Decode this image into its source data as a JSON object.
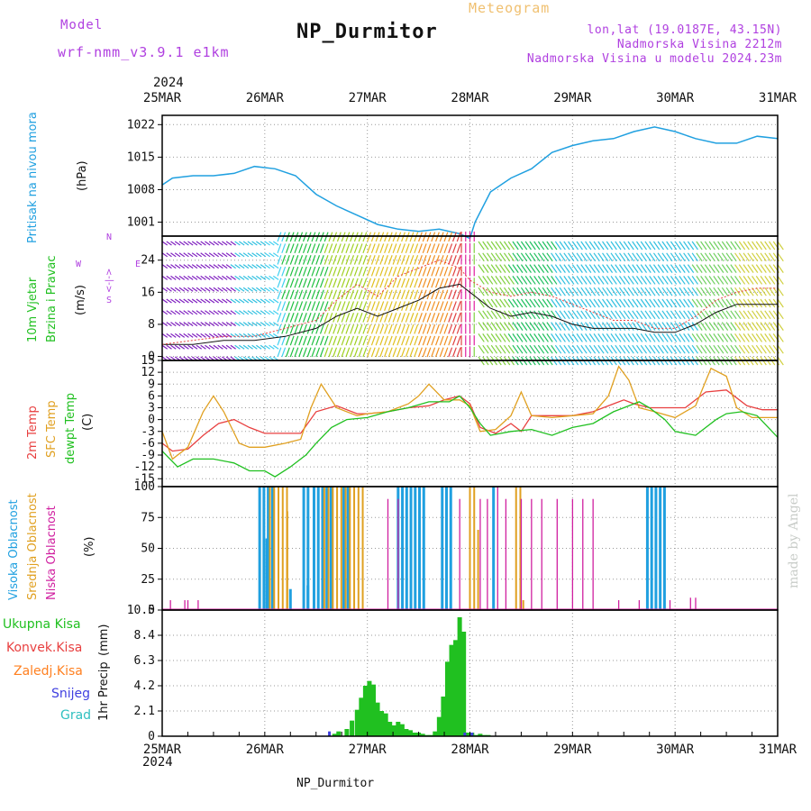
{
  "header": {
    "model_label": "Model",
    "model_name": "wrf-nmm_v3.9.1 e1km",
    "product": "Meteogram",
    "station": "NP_Durmitor",
    "coords": "lon,lat (19.0187E, 43.15N)",
    "elevation": "Nadmorska Visina 2212m",
    "model_elevation": "Nadmorska Visina u modelu 2024.23m",
    "year": "2024",
    "footer_station": "NP_Durmitor",
    "watermark": "made by Angel"
  },
  "colors": {
    "pressure": "#20a0e0",
    "wind_label": "#20c020",
    "temp2m": "#e84040",
    "sfc": "#e0a020",
    "dewpt": "#20c020",
    "high_cloud": "#20a0e0",
    "mid_cloud": "#e0a020",
    "low_cloud": "#d020a0",
    "total_precip": "#20c020",
    "conv_precip": "#e84040",
    "frozen": "#ff8020",
    "snow": "#4040e0",
    "hail": "#30c0c0",
    "purple": "#b040e0"
  },
  "time_axis": {
    "labels": [
      "25MAR",
      "26MAR",
      "27MAR",
      "28MAR",
      "29MAR",
      "30MAR",
      "31MAR"
    ]
  },
  "chart_data": [
    {
      "type": "line",
      "id": "pressure",
      "ylabel": "Pritisak na nivou mora",
      "unit": "(hPa)",
      "yticks": [
        1001,
        1008,
        1015,
        1022
      ],
      "ylim": [
        998,
        1024
      ],
      "xlim": [
        0,
        6
      ],
      "series": [
        {
          "x": [
            0,
            0.1,
            0.3,
            0.5,
            0.7,
            0.9,
            1.1,
            1.3,
            1.5,
            1.7,
            1.9,
            2.1,
            2.3,
            2.5,
            2.7,
            2.9,
            3.0,
            3.05,
            3.2,
            3.4,
            3.6,
            3.8,
            4.0,
            4.2,
            4.4,
            4.6,
            4.8,
            5.0,
            5.2,
            5.4,
            5.6,
            5.8,
            6.0
          ],
          "y": [
            1009,
            1010.5,
            1011,
            1011,
            1011.5,
            1013,
            1012.5,
            1011,
            1007,
            1004.5,
            1002.5,
            1000.5,
            999.5,
            999,
            999.5,
            998.5,
            997.5,
            1001,
            1007.5,
            1010.5,
            1012.5,
            1016,
            1017.5,
            1018.5,
            1019,
            1020.5,
            1021.5,
            1020.5,
            1019,
            1018,
            1018,
            1019.5,
            1019
          ]
        }
      ]
    },
    {
      "type": "line",
      "id": "wind",
      "ylabel": "10m Vjetar",
      "ylabel2": "Brzina i Pravac",
      "unit": "(m/s)",
      "yticks": [
        0,
        8,
        16,
        24
      ],
      "ylim": [
        -1,
        30
      ],
      "xlim": [
        0,
        6
      ],
      "compass": [
        "W",
        "<-|->",
        "E",
        "N",
        "S"
      ],
      "series": [
        {
          "name": "speed",
          "x": [
            0,
            0.3,
            0.6,
            0.9,
            1.2,
            1.5,
            1.7,
            1.9,
            2.1,
            2.3,
            2.5,
            2.7,
            2.9,
            3.0,
            3.2,
            3.4,
            3.6,
            3.8,
            4.0,
            4.2,
            4.4,
            4.6,
            4.8,
            5.0,
            5.2,
            5.4,
            5.6,
            5.8,
            6.0
          ],
          "y": [
            3,
            3,
            4,
            4,
            5,
            7,
            10,
            12,
            10,
            12,
            14,
            17,
            18,
            16,
            12,
            10,
            11,
            10,
            8,
            7,
            7,
            7,
            6,
            6,
            8,
            11,
            13,
            13,
            13
          ]
        },
        {
          "name": "gust",
          "x": [
            0,
            0.3,
            0.6,
            0.9,
            1.2,
            1.5,
            1.7,
            1.9,
            2.1,
            2.3,
            2.5,
            2.7,
            2.9,
            3.0,
            3.2,
            3.4,
            3.6,
            3.8,
            4.0,
            4.2,
            4.4,
            4.6,
            4.8,
            5.0,
            5.2,
            5.4,
            5.6,
            5.8,
            6.0
          ],
          "y": [
            3,
            4,
            5,
            5,
            7,
            9,
            14,
            18,
            15,
            20,
            22,
            24,
            22,
            19,
            16,
            15,
            16,
            15,
            13,
            11,
            9,
            9,
            7,
            7,
            10,
            14,
            16,
            17,
            17
          ]
        }
      ]
    },
    {
      "type": "line",
      "id": "temperature",
      "ylabels": [
        "2m Temp",
        "SFC Temp",
        "dewpt Temp"
      ],
      "unit": "(C)",
      "yticks": [
        -15,
        -12,
        -9,
        -6,
        -3,
        0,
        3,
        6,
        9,
        12,
        15
      ],
      "ylim": [
        -17,
        15
      ],
      "xlim": [
        0,
        6
      ],
      "series": [
        {
          "name": "2m Temp",
          "x": [
            0,
            0.1,
            0.25,
            0.4,
            0.55,
            0.7,
            0.85,
            1.0,
            1.2,
            1.35,
            1.5,
            1.7,
            1.9,
            2.0,
            2.2,
            2.4,
            2.6,
            2.75,
            2.9,
            3.0,
            3.1,
            3.25,
            3.4,
            3.5,
            3.6,
            3.8,
            4.0,
            4.2,
            4.4,
            4.5,
            4.6,
            4.75,
            4.9,
            5.1,
            5.3,
            5.5,
            5.7,
            5.85,
            6.0
          ],
          "y": [
            -6,
            -8,
            -7.5,
            -4,
            -1,
            0,
            -2,
            -3.5,
            -3.5,
            -3.5,
            2,
            3.5,
            1.5,
            1.5,
            2,
            3,
            3.5,
            5,
            6,
            4,
            -2,
            -3.5,
            -1,
            -3,
            1,
            1,
            1,
            2,
            4,
            5,
            4,
            3,
            3,
            3,
            7,
            7.5,
            3.5,
            2.5,
            2.5
          ]
        },
        {
          "name": "SFC Temp",
          "x": [
            0,
            0.1,
            0.25,
            0.4,
            0.5,
            0.6,
            0.75,
            0.85,
            1.0,
            1.2,
            1.35,
            1.45,
            1.55,
            1.7,
            1.9,
            2.0,
            2.2,
            2.4,
            2.5,
            2.6,
            2.75,
            2.9,
            3.0,
            3.1,
            3.25,
            3.4,
            3.5,
            3.6,
            3.8,
            4.0,
            4.2,
            4.35,
            4.45,
            4.55,
            4.65,
            4.8,
            5.0,
            5.2,
            5.35,
            5.5,
            5.6,
            5.75,
            5.9,
            6.0
          ],
          "y": [
            -3,
            -10,
            -7,
            2,
            6,
            2,
            -6,
            -7,
            -7,
            -6,
            -5,
            3,
            9,
            3,
            1,
            1.5,
            2,
            4,
            6,
            9,
            5,
            5,
            3.5,
            -3,
            -2.5,
            1,
            7,
            1,
            0.5,
            1,
            1.5,
            6,
            13.5,
            10,
            3,
            2,
            0.5,
            3.5,
            13,
            11,
            3,
            0.5,
            0.5,
            0.5
          ]
        },
        {
          "name": "dewpt Temp",
          "x": [
            0,
            0.15,
            0.3,
            0.5,
            0.7,
            0.85,
            1.0,
            1.1,
            1.25,
            1.4,
            1.5,
            1.65,
            1.8,
            2.0,
            2.2,
            2.4,
            2.6,
            2.8,
            2.9,
            3.0,
            3.1,
            3.2,
            3.4,
            3.6,
            3.8,
            4.0,
            4.2,
            4.4,
            4.5,
            4.65,
            4.75,
            4.9,
            5.0,
            5.2,
            5.4,
            5.5,
            5.65,
            5.8,
            6.0
          ],
          "y": [
            -8,
            -12,
            -10,
            -10,
            -11,
            -13,
            -13,
            -14.5,
            -12,
            -9,
            -6,
            -2,
            0,
            0.5,
            2,
            3,
            4.5,
            4.5,
            6,
            3,
            -1,
            -4,
            -3,
            -2.5,
            -4,
            -2,
            -1,
            2,
            3,
            4.5,
            3,
            0,
            -3,
            -4,
            0,
            1.5,
            2,
            1,
            -4.5
          ]
        }
      ]
    },
    {
      "type": "bar",
      "id": "clouds",
      "ylabels": [
        "Visoka Oblacnost",
        "Srednja Oblacnost",
        "Niska Oblacnost"
      ],
      "unit": "(%)",
      "yticks": [
        0,
        25,
        50,
        75,
        100
      ],
      "ylim": [
        0,
        100
      ],
      "xlim": [
        0,
        6
      ],
      "high": {
        "ranges": [
          [
            0.95,
            1.08
          ],
          [
            1.38,
            1.45
          ],
          [
            1.48,
            1.65
          ],
          [
            1.77,
            1.83
          ],
          [
            2.3,
            2.55
          ],
          [
            2.73,
            2.85
          ],
          [
            3.23,
            3.27
          ],
          [
            4.73,
            4.92
          ]
        ],
        "value": 100,
        "extras": [
          [
            1.02,
            58
          ],
          [
            1.25,
            17
          ],
          [
            1.42,
            20
          ]
        ]
      },
      "mid": {
        "ranges": [
          [
            1.05,
            1.25
          ],
          [
            1.58,
            1.98
          ],
          [
            3.0,
            3.08
          ],
          [
            3.45,
            3.5
          ]
        ],
        "value": 100,
        "extras": [
          [
            1.22,
            80
          ],
          [
            3.08,
            65
          ],
          [
            3.52,
            8
          ]
        ]
      },
      "low": {
        "ranges": [
          [
            0.08,
            0.09
          ],
          [
            0.22,
            0.23
          ],
          [
            0.25,
            0.26
          ],
          [
            0.35,
            0.36
          ],
          [
            2.2,
            2.21
          ],
          [
            2.3,
            2.31
          ],
          [
            2.9,
            2.91
          ],
          [
            3.1,
            3.11
          ],
          [
            3.17,
            3.18
          ],
          [
            3.27,
            3.28
          ],
          [
            3.35,
            3.36
          ],
          [
            3.5,
            3.51
          ],
          [
            3.6,
            3.61
          ],
          [
            3.7,
            3.71
          ],
          [
            3.85,
            3.86
          ],
          [
            4.0,
            4.01
          ],
          [
            4.1,
            4.11
          ],
          [
            4.2,
            4.21
          ],
          [
            5.15,
            5.16
          ],
          [
            5.2,
            5.21
          ],
          [
            4.45,
            4.46
          ],
          [
            4.65,
            4.66
          ],
          [
            4.95,
            4.96
          ]
        ],
        "values": [
          8,
          8,
          8,
          8,
          90,
          90,
          90,
          90,
          90,
          100,
          90,
          90,
          90,
          90,
          90,
          90,
          90,
          90,
          10,
          10,
          8,
          8,
          8
        ]
      }
    },
    {
      "type": "bar",
      "id": "precip",
      "ylabel": "1hr Precip",
      "unit": "(mm)",
      "yticks": [
        0,
        2.1,
        4.2,
        6.3,
        8.4,
        10.5
      ],
      "ylim": [
        0,
        10.5
      ],
      "xlim": [
        0,
        6
      ],
      "legend": [
        "Ukupna Kisa",
        "Konvek.Kisa",
        "Zaledj.Kisa",
        "Snijeg",
        "Grad"
      ],
      "total": {
        "x": [
          1.68,
          1.72,
          1.8,
          1.85,
          1.9,
          1.94,
          1.98,
          2.02,
          2.06,
          2.1,
          2.14,
          2.18,
          2.22,
          2.26,
          2.3,
          2.34,
          2.38,
          2.42,
          2.46,
          2.5,
          2.54,
          2.58,
          2.62,
          2.66,
          2.7,
          2.74,
          2.78,
          2.82,
          2.86,
          2.9,
          2.94,
          2.98,
          3.02,
          3.06,
          3.1,
          3.14,
          3.18
        ],
        "y": [
          0.2,
          0.4,
          0.6,
          1.3,
          2.2,
          3.2,
          4.2,
          4.6,
          4.3,
          2.8,
          2.1,
          1.9,
          1.2,
          0.9,
          1.2,
          1.0,
          0.6,
          0.5,
          0.3,
          0.3,
          0.2,
          0.1,
          0.1,
          0.4,
          1.6,
          3.3,
          6.2,
          7.6,
          8.0,
          9.9,
          8.7,
          0.3,
          0.3,
          0.1,
          0.2,
          0.1,
          0.1
        ]
      },
      "snow": {
        "x": [
          1.63,
          2.95,
          3.02
        ],
        "y": [
          0.4,
          0.3,
          0.3
        ]
      }
    }
  ]
}
